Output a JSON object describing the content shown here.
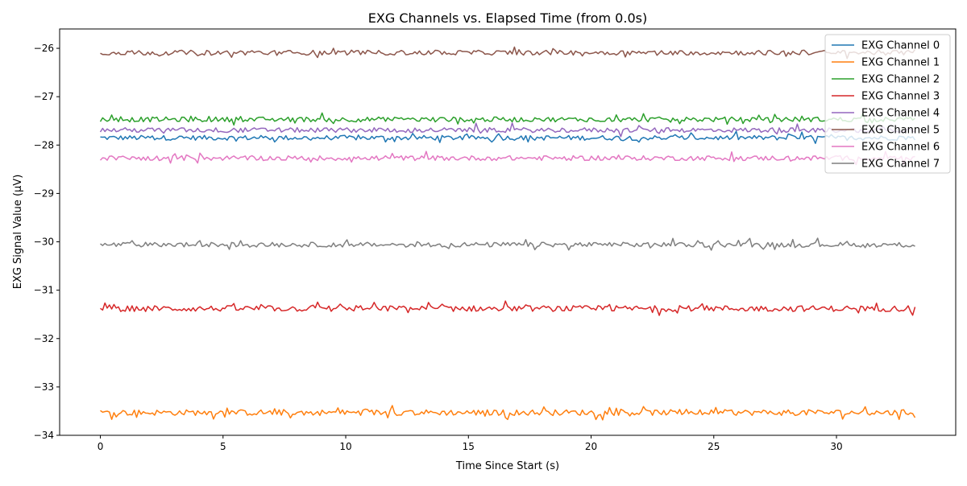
{
  "chart_data": {
    "type": "line",
    "title": "EXG Channels vs. Elapsed Time (from 0.0s)",
    "xlabel": "Time Since Start (s)",
    "ylabel": "EXG Signal Value (µV)",
    "xlim": [
      -1.66,
      34.86
    ],
    "ylim": [
      -34.0,
      -25.6
    ],
    "xticks": [
      0,
      5,
      10,
      15,
      20,
      25,
      30
    ],
    "yticks": [
      -34,
      -33,
      -32,
      -31,
      -30,
      -29,
      -28,
      -27,
      -26
    ],
    "x_range": [
      0.0,
      33.2
    ],
    "legend_position": "top-right",
    "grid": false,
    "series": [
      {
        "name": "EXG Channel 0",
        "color": "#1f77b4",
        "mean": -27.85,
        "amplitude": 0.05
      },
      {
        "name": "EXG Channel 1",
        "color": "#ff7f0e",
        "mean": -33.53,
        "amplitude": 0.06
      },
      {
        "name": "EXG Channel 2",
        "color": "#2ca02c",
        "mean": -27.47,
        "amplitude": 0.05
      },
      {
        "name": "EXG Channel 3",
        "color": "#d62728",
        "mean": -31.38,
        "amplitude": 0.06
      },
      {
        "name": "EXG Channel 4",
        "color": "#9467bd",
        "mean": -27.69,
        "amplitude": 0.05
      },
      {
        "name": "EXG Channel 5",
        "color": "#8c564b",
        "mean": -26.09,
        "amplitude": 0.05
      },
      {
        "name": "EXG Channel 6",
        "color": "#e377c2",
        "mean": -28.27,
        "amplitude": 0.05
      },
      {
        "name": "EXG Channel 7",
        "color": "#7f7f7f",
        "mean": -30.06,
        "amplitude": 0.05
      }
    ]
  }
}
